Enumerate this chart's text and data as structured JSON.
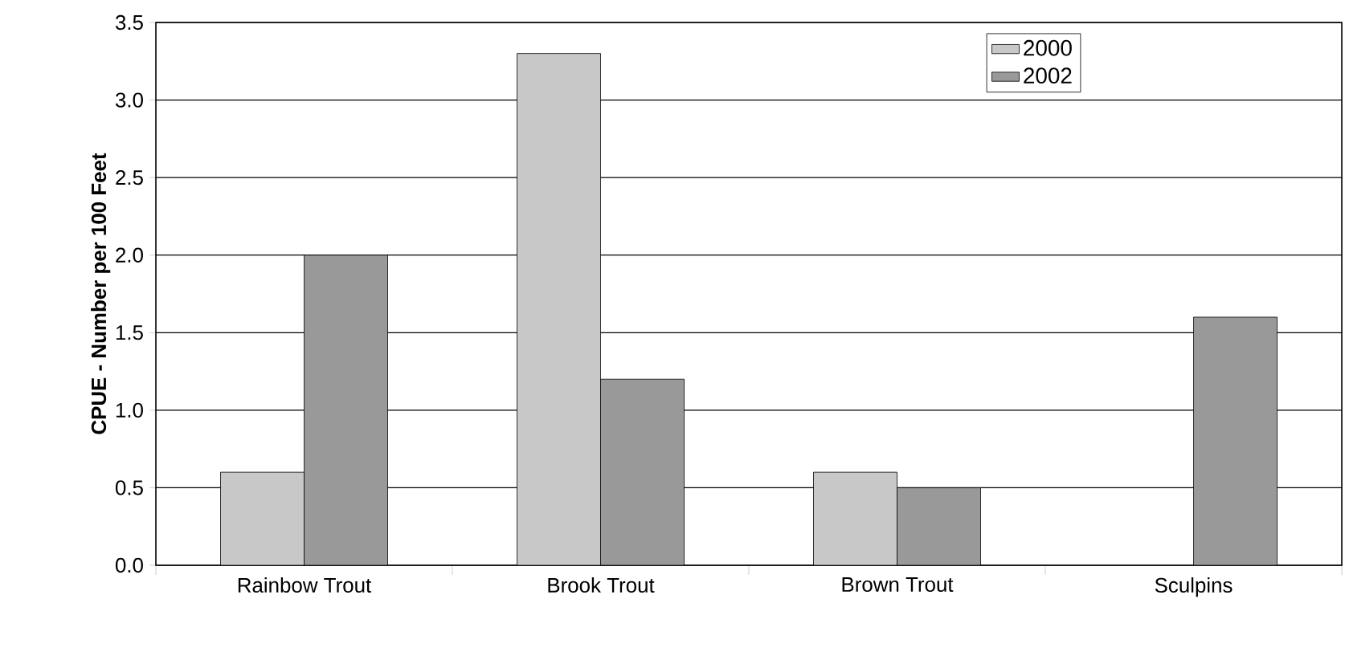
{
  "chart_data": {
    "type": "bar",
    "ylabel": "CPUE - Number per 100 Feet",
    "categories": [
      "Rainbow Trout",
      "Brook Trout",
      "Brown Trout",
      "Sculpins"
    ],
    "series": [
      {
        "name": "2000",
        "color": "#c8c8c8",
        "values": [
          0.6,
          3.3,
          0.6,
          null
        ]
      },
      {
        "name": "2002",
        "color": "#999999",
        "values": [
          2.0,
          1.2,
          0.5,
          1.6
        ]
      }
    ],
    "ylim": [
      0,
      3.5
    ],
    "yticks": [
      {
        "value": 0,
        "label": "0.0"
      },
      {
        "value": 0.5,
        "label": "0.5"
      },
      {
        "value": 1,
        "label": "1.0"
      },
      {
        "value": 1.5,
        "label": "1.5"
      },
      {
        "value": 2,
        "label": "2.0"
      },
      {
        "value": 2.5,
        "label": "2.5"
      },
      {
        "value": 3,
        "label": "3.0"
      },
      {
        "value": 3.5,
        "label": "3.5"
      }
    ],
    "grid": "y",
    "legend": "top right"
  }
}
